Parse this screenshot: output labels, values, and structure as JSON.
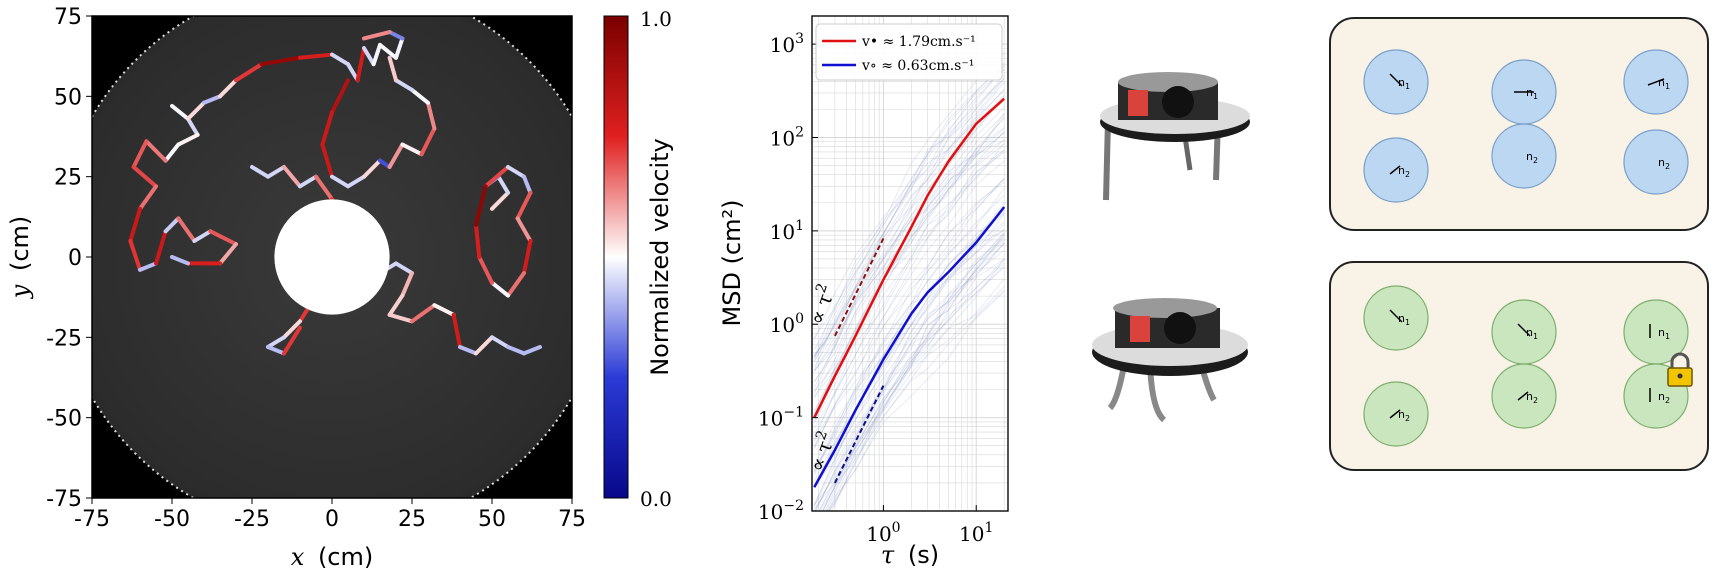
{
  "chart_data": [
    {
      "type": "scatter",
      "panel": "trajectory",
      "xlabel_var": "x",
      "xlabel_unit": "(cm)",
      "ylabel_var": "y",
      "ylabel_unit": "(cm)",
      "xlim": [
        -75,
        75
      ],
      "ylim": [
        -75,
        75
      ],
      "xticks": [
        "-75",
        "-50",
        "-25",
        "0",
        "25",
        "50",
        "75"
      ],
      "yticks": [
        "75",
        "50",
        "25",
        "0",
        "-25",
        "-50",
        "-75"
      ],
      "colorbar": {
        "label": "Normalized velocity",
        "min_label": "0.0",
        "max_label": "1.0",
        "colors": [
          "#08088a",
          "#2b3bd6",
          "#ffffff",
          "#e02020",
          "#7a0000"
        ]
      },
      "obstacle": {
        "center": [
          0,
          0
        ],
        "radius": 18
      },
      "trajectories": [
        {
          "points": [
            [
              -50,
              47
            ],
            [
              -45,
              43
            ],
            [
              -42,
              38
            ],
            [
              -48,
              35
            ],
            [
              -52,
              30
            ],
            [
              -58,
              36
            ],
            [
              -62,
              28
            ],
            [
              -55,
              22
            ],
            [
              -60,
              15
            ],
            [
              -63,
              5
            ],
            [
              -60,
              -4
            ],
            [
              -55,
              -2
            ],
            [
              -52,
              8
            ],
            [
              -48,
              12
            ],
            [
              -43,
              5
            ],
            [
              -38,
              8
            ],
            [
              -30,
              4
            ],
            [
              -35,
              -2
            ],
            [
              -45,
              -2
            ],
            [
              -50,
              0
            ]
          ]
        },
        {
          "points": [
            [
              -45,
              43
            ],
            [
              -40,
              48
            ],
            [
              -35,
              50
            ],
            [
              -30,
              55
            ],
            [
              -22,
              60
            ],
            [
              -10,
              62
            ],
            [
              0,
              63
            ],
            [
              5,
              60
            ],
            [
              8,
              55
            ],
            [
              10,
              65
            ],
            [
              13,
              60
            ],
            [
              15,
              66
            ],
            [
              20,
              62
            ],
            [
              22,
              68
            ],
            [
              18,
              70
            ],
            [
              10,
              68
            ]
          ]
        },
        {
          "points": [
            [
              5,
              55
            ],
            [
              0,
              45
            ],
            [
              -3,
              35
            ],
            [
              0,
              25
            ],
            [
              5,
              22
            ],
            [
              10,
              25
            ],
            [
              15,
              30
            ],
            [
              18,
              28
            ],
            [
              22,
              35
            ],
            [
              28,
              32
            ],
            [
              32,
              40
            ],
            [
              30,
              48
            ],
            [
              25,
              52
            ],
            [
              20,
              55
            ],
            [
              18,
              62
            ]
          ]
        },
        {
          "points": [
            [
              -25,
              28
            ],
            [
              -20,
              25
            ],
            [
              -15,
              28
            ],
            [
              -10,
              22
            ],
            [
              -5,
              25
            ],
            [
              0,
              18
            ],
            [
              -5,
              10
            ],
            [
              -8,
              5
            ],
            [
              -3,
              0
            ],
            [
              3,
              4
            ],
            [
              8,
              8
            ],
            [
              10,
              -2
            ],
            [
              5,
              -8
            ],
            [
              2,
              -15
            ],
            [
              -5,
              -12
            ],
            [
              -10,
              -20
            ],
            [
              -15,
              -25
            ],
            [
              -20,
              -28
            ],
            [
              -15,
              -30
            ],
            [
              -10,
              -22
            ]
          ]
        },
        {
          "points": [
            [
              15,
              -5
            ],
            [
              20,
              -2
            ],
            [
              25,
              -5
            ],
            [
              22,
              -12
            ],
            [
              18,
              -18
            ],
            [
              25,
              -20
            ],
            [
              32,
              -15
            ],
            [
              38,
              -18
            ],
            [
              40,
              -28
            ],
            [
              45,
              -30
            ],
            [
              50,
              -25
            ],
            [
              55,
              -28
            ],
            [
              60,
              -30
            ],
            [
              65,
              -28
            ]
          ]
        },
        {
          "points": [
            [
              50,
              15
            ],
            [
              55,
              20
            ],
            [
              52,
              25
            ],
            [
              48,
              22
            ],
            [
              55,
              28
            ],
            [
              60,
              25
            ],
            [
              62,
              20
            ],
            [
              58,
              12
            ],
            [
              62,
              5
            ],
            [
              60,
              -5
            ],
            [
              55,
              -12
            ],
            [
              50,
              -8
            ],
            [
              46,
              0
            ],
            [
              45,
              10
            ],
            [
              48,
              22
            ]
          ]
        }
      ]
    },
    {
      "type": "line",
      "panel": "msd",
      "ylabel": "MSD (cm²)",
      "xlabel_var": "τ",
      "xlabel_unit": "(s)",
      "xscale": "log",
      "yscale": "log",
      "xlim": [
        0.17,
        22
      ],
      "ylim": [
        0.01,
        2000
      ],
      "xticks": [
        {
          "value": 1,
          "label": "10",
          "exp": "0"
        },
        {
          "value": 10,
          "label": "10",
          "exp": "1"
        }
      ],
      "yticks": [
        {
          "value": 0.01,
          "label": "10",
          "exp": "−2"
        },
        {
          "value": 0.1,
          "label": "10",
          "exp": "−1"
        },
        {
          "value": 1,
          "label": "10",
          "exp": "0"
        },
        {
          "value": 10,
          "label": "10",
          "exp": "1"
        },
        {
          "value": 100,
          "label": "10",
          "exp": "2"
        },
        {
          "value": 1000,
          "label": "10",
          "exp": "3"
        }
      ],
      "grid": true,
      "legend_position": "top-left",
      "series": [
        {
          "name": "v• ≈ 1.79cm.s⁻¹",
          "color": "#e01010",
          "x": [
            0.18,
            0.3,
            0.5,
            1,
            2,
            3,
            5,
            10,
            20
          ],
          "y": [
            0.1,
            0.28,
            0.75,
            3.0,
            11,
            24,
            55,
            140,
            260
          ]
        },
        {
          "name": "v∘ ≈ 0.63cm.s⁻¹",
          "color": "#1010d0",
          "x": [
            0.18,
            0.3,
            0.5,
            1,
            2,
            3,
            5,
            10,
            20
          ],
          "y": [
            0.018,
            0.045,
            0.12,
            0.42,
            1.3,
            2.2,
            3.6,
            7.5,
            18
          ]
        }
      ],
      "annotations": [
        {
          "text": "∝ τ",
          "exp": "2",
          "color": "#8a1010"
        },
        {
          "text": "∝ τ",
          "exp": "2",
          "color": "#10108a"
        }
      ]
    }
  ],
  "diagram": {
    "top_panel_color": "#bcd7f2",
    "bottom_panel_color": "#c9e6be",
    "label_n1": "n",
    "label_n1_sub": "1",
    "label_n2": "n",
    "label_n2_sub": "2"
  }
}
